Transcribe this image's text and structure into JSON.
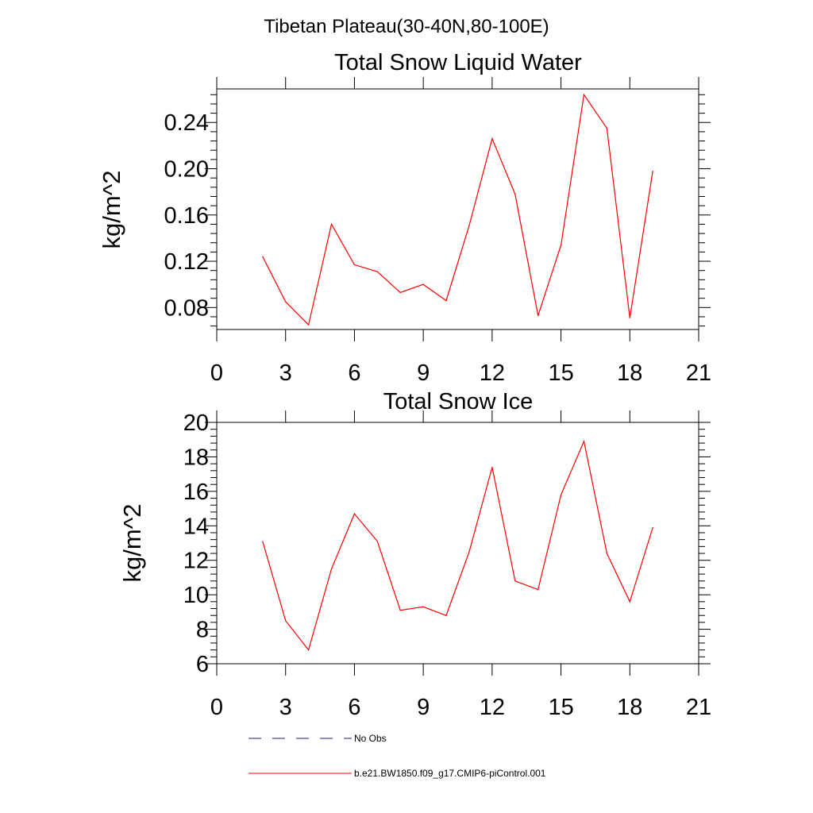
{
  "page_title": "Tibetan Plateau(30-40N,80-100E)",
  "legend": {
    "entries": [
      {
        "label": "No Obs",
        "color": "#1a1a80",
        "style": "dashed"
      },
      {
        "label": "b.e21.BW1850.f09_g17.CMIP6-piControl.001",
        "color": "#ff0000",
        "style": "solid"
      }
    ]
  },
  "chart_data": [
    {
      "type": "line",
      "title": "Total Snow Liquid Water",
      "xlabel": "",
      "ylabel": "kg/m^2",
      "xlim": [
        0,
        21
      ],
      "ylim": [
        0.061,
        0.269
      ],
      "xticks": [
        0,
        3,
        6,
        9,
        12,
        15,
        18,
        21
      ],
      "xtick_labels": [
        "0",
        "3",
        "6",
        "9",
        "12",
        "15",
        "18",
        "21"
      ],
      "yticks": [
        0.08,
        0.12,
        0.16,
        0.2,
        0.24
      ],
      "ytick_labels": [
        "0.08",
        "0.12",
        "0.16",
        "0.20",
        "0.24"
      ],
      "grid": false,
      "series": [
        {
          "color": "#ff0000",
          "x": [
            2,
            3,
            4,
            5,
            6,
            7,
            8,
            9,
            10,
            11,
            12,
            13,
            14,
            15,
            16,
            17,
            18,
            19
          ],
          "values": [
            0.124,
            0.085,
            0.065,
            0.152,
            0.117,
            0.111,
            0.093,
            0.1,
            0.086,
            0.151,
            0.226,
            0.178,
            0.073,
            0.134,
            0.264,
            0.235,
            0.071,
            0.198
          ]
        }
      ]
    },
    {
      "type": "line",
      "title": "Total Snow Ice",
      "xlabel": "",
      "ylabel": "kg/m^2",
      "xlim": [
        0,
        21
      ],
      "ylim": [
        6,
        20
      ],
      "xticks": [
        0,
        3,
        6,
        9,
        12,
        15,
        18,
        21
      ],
      "xtick_labels": [
        "0",
        "3",
        "6",
        "9",
        "12",
        "15",
        "18",
        "21"
      ],
      "yticks": [
        6,
        8,
        10,
        12,
        14,
        16,
        18,
        20
      ],
      "ytick_labels": [
        "6",
        "8",
        "10",
        "12",
        "14",
        "16",
        "18",
        "20"
      ],
      "grid": false,
      "series": [
        {
          "color": "#ff0000",
          "x": [
            2,
            3,
            4,
            5,
            6,
            7,
            8,
            9,
            10,
            11,
            12,
            13,
            14,
            15,
            16,
            17,
            18,
            19
          ],
          "values": [
            13.1,
            8.5,
            6.8,
            11.5,
            14.7,
            13.1,
            9.1,
            9.3,
            8.8,
            12.5,
            17.4,
            10.8,
            10.3,
            15.8,
            18.9,
            12.4,
            9.6,
            13.9
          ]
        }
      ]
    }
  ]
}
